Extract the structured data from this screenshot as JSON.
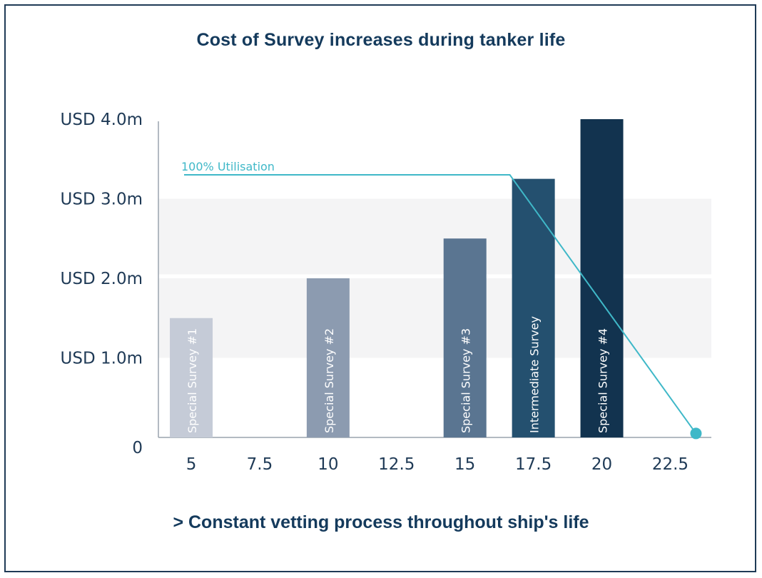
{
  "chart_data": {
    "type": "bar",
    "title": "Cost of Survey increases during tanker life",
    "footer": "> Constant vetting process throughout ship's life",
    "xlabel": "",
    "ylabel": "",
    "x_ticks": [
      "5",
      "7.5",
      "10",
      "12.5",
      "15",
      "17.5",
      "20",
      "22.5"
    ],
    "y_ticks": [
      "0",
      "USD 1.0m",
      "USD 2.0m",
      "USD 3.0m",
      "USD 4.0m"
    ],
    "ylim": [
      0,
      4.0
    ],
    "xlim": [
      3.8,
      24
    ],
    "bands": [
      [
        1,
        2
      ],
      [
        2.05,
        3
      ]
    ],
    "band_color": "#f4f4f5",
    "bars": [
      {
        "x": 5,
        "value": 1.5,
        "label": "Special Survey #1",
        "color": "#c5cbd7"
      },
      {
        "x": 10,
        "value": 2.0,
        "label": "Special Survey #2",
        "color": "#8c9bb0"
      },
      {
        "x": 15,
        "value": 2.5,
        "label": "Special Survey #3",
        "color": "#5a7591"
      },
      {
        "x": 17.5,
        "value": 3.25,
        "label": "Intermediate Survey",
        "color": "#24506f"
      },
      {
        "x": 20,
        "value": 4.0,
        "label": "Special Survey #4",
        "color": "#12334f"
      }
    ],
    "line": {
      "name": "100% Utilisation",
      "color": "#3fb8c8",
      "points": [
        [
          3.8,
          3.3
        ],
        [
          15.7,
          3.3
        ],
        [
          22.5,
          0.05
        ]
      ]
    }
  }
}
